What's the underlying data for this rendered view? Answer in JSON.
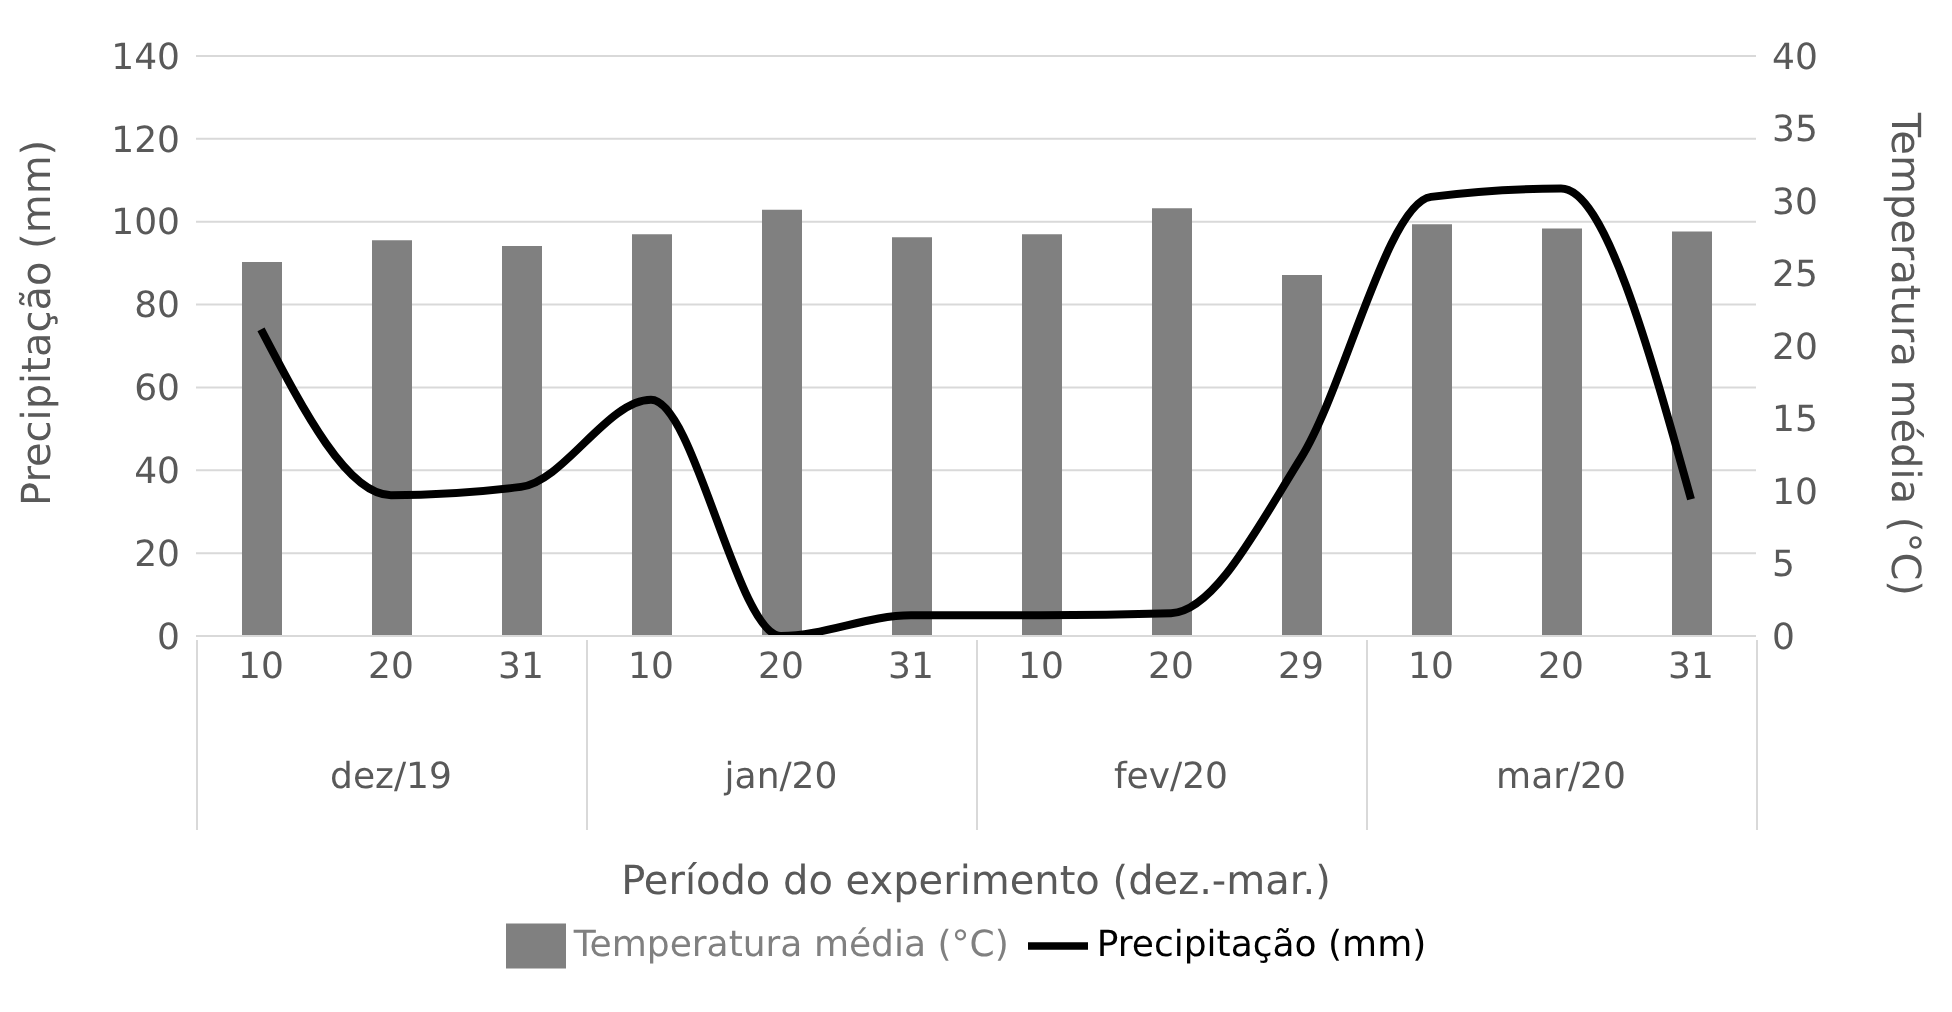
{
  "chart_data": {
    "type": "bar",
    "xlabel": "Período do experimento (dez.-mar.)",
    "ylabel": "Precipitação (mm)",
    "y2label": "Temperatura média (°C)",
    "categories": [
      "10",
      "20",
      "31",
      "10",
      "20",
      "31",
      "10",
      "20",
      "29",
      "10",
      "20",
      "31"
    ],
    "annotations": [
      "dez/19",
      "jan/20",
      "fev/20",
      "mar/20"
    ],
    "series": [
      {
        "name": "Temperatura média (°C)",
        "axis": "y2",
        "color": "#808080",
        "values": [
          25.8,
          27.3,
          26.9,
          27.7,
          29.4,
          27.5,
          27.7,
          29.5,
          24.9,
          28.4,
          28.1,
          27.9
        ]
      },
      {
        "name": "Precipitação (mm)",
        "type": "line",
        "color": "#000000",
        "values": [
          74,
          34,
          36,
          57,
          0,
          5,
          5,
          5.5,
          43,
          106,
          108,
          33
        ]
      }
    ],
    "ylim": [
      0,
      140
    ],
    "yticks": [
      0,
      20,
      40,
      60,
      80,
      100,
      120,
      140
    ],
    "y2lim": [
      0,
      40
    ],
    "y2ticks": [
      0,
      5,
      10,
      15,
      20,
      25,
      30,
      35,
      40
    ],
    "grid": "y",
    "legend": "bottom"
  }
}
